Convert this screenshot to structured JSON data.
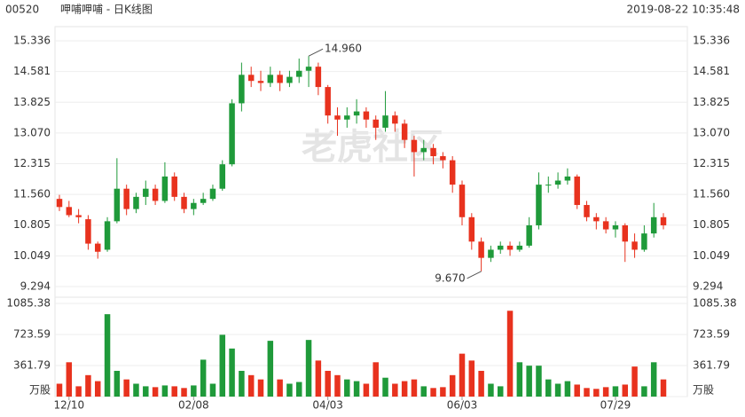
{
  "chart_data": {
    "type": "candlestick",
    "title": "00520",
    "subtitle": "呷哺呷哺 - 日K线图",
    "timestamp": "2019-08-22 10:35:48",
    "watermark": "老虎社区",
    "up_color": "#1f9a3a",
    "down_color": "#e8321e",
    "grid": true,
    "categories": [
      null,
      "12/10",
      null,
      null,
      null,
      null,
      null,
      null,
      null,
      null,
      null,
      null,
      null,
      null,
      "02/08",
      null,
      null,
      null,
      null,
      null,
      null,
      null,
      null,
      null,
      null,
      null,
      null,
      null,
      "04/03",
      null,
      null,
      null,
      null,
      null,
      null,
      null,
      null,
      null,
      null,
      null,
      null,
      null,
      "06/03",
      null,
      null,
      null,
      null,
      null,
      null,
      null,
      null,
      null,
      null,
      null,
      null,
      null,
      null,
      null,
      "07/29",
      null,
      null,
      null,
      null,
      null
    ],
    "open": [
      11.45,
      11.25,
      11.05,
      10.95,
      10.35,
      10.2,
      10.9,
      11.7,
      11.2,
      11.5,
      11.7,
      11.4,
      12.0,
      11.5,
      11.2,
      11.35,
      11.45,
      11.7,
      12.3,
      13.8,
      14.5,
      14.35,
      14.3,
      14.5,
      14.3,
      14.45,
      14.6,
      14.7,
      14.2,
      13.5,
      13.4,
      13.5,
      13.6,
      13.4,
      13.2,
      13.5,
      13.3,
      12.9,
      12.6,
      12.7,
      12.5,
      12.4,
      11.8,
      11.0,
      10.4,
      10.0,
      10.2,
      10.3,
      10.2,
      10.3,
      10.8,
      11.8,
      11.8,
      11.9,
      12.0,
      11.3,
      11.0,
      10.9,
      10.7,
      10.8,
      10.4,
      10.2,
      10.6,
      11.0
    ],
    "high": [
      11.55,
      11.4,
      11.2,
      11.05,
      10.4,
      11.0,
      12.45,
      11.8,
      11.6,
      11.9,
      11.8,
      12.35,
      12.1,
      11.6,
      11.45,
      11.6,
      11.8,
      12.4,
      13.9,
      14.8,
      14.7,
      14.6,
      14.7,
      14.6,
      14.6,
      14.9,
      14.96,
      14.8,
      14.25,
      13.7,
      13.7,
      13.9,
      13.7,
      13.5,
      14.1,
      13.6,
      13.4,
      13.0,
      12.9,
      12.8,
      12.6,
      12.5,
      11.9,
      11.1,
      10.5,
      10.3,
      10.4,
      10.4,
      10.4,
      11.0,
      12.1,
      12.0,
      12.1,
      12.2,
      12.05,
      11.4,
      11.1,
      11.0,
      10.9,
      10.85,
      10.6,
      10.8,
      11.35,
      11.1
    ],
    "low": [
      11.15,
      11.0,
      10.85,
      10.2,
      9.98,
      10.15,
      10.85,
      11.05,
      11.1,
      11.3,
      11.3,
      11.35,
      11.4,
      11.1,
      11.05,
      11.3,
      11.4,
      11.65,
      12.25,
      13.6,
      14.2,
      14.1,
      14.2,
      14.1,
      14.2,
      14.3,
      14.2,
      14.0,
      13.3,
      13.0,
      13.2,
      13.3,
      13.2,
      12.9,
      13.1,
      13.1,
      12.7,
      12.0,
      12.4,
      12.3,
      12.2,
      11.6,
      10.8,
      10.2,
      9.67,
      9.9,
      10.1,
      10.05,
      10.15,
      10.25,
      10.7,
      11.6,
      11.7,
      11.8,
      11.2,
      10.9,
      10.7,
      10.6,
      10.5,
      9.9,
      10.0,
      10.15,
      10.5,
      10.7
    ],
    "close": [
      11.25,
      11.05,
      11.0,
      10.35,
      10.15,
      10.9,
      11.7,
      11.2,
      11.5,
      11.7,
      11.4,
      12.0,
      11.5,
      11.2,
      11.35,
      11.45,
      11.7,
      12.3,
      13.8,
      14.5,
      14.35,
      14.3,
      14.5,
      14.3,
      14.45,
      14.6,
      14.7,
      14.2,
      13.5,
      13.4,
      13.5,
      13.6,
      13.4,
      13.2,
      13.5,
      13.3,
      12.9,
      12.6,
      12.7,
      12.5,
      12.4,
      11.8,
      11.0,
      10.4,
      10.0,
      10.2,
      10.3,
      10.2,
      10.3,
      10.8,
      11.8,
      11.8,
      11.9,
      12.0,
      11.3,
      11.0,
      10.9,
      10.7,
      10.8,
      10.4,
      10.2,
      10.6,
      11.0,
      10.8
    ],
    "volume": [
      150,
      400,
      120,
      250,
      180,
      960,
      300,
      200,
      150,
      120,
      110,
      130,
      120,
      100,
      130,
      430,
      150,
      720,
      560,
      300,
      250,
      200,
      650,
      200,
      150,
      170,
      660,
      420,
      300,
      250,
      200,
      180,
      150,
      400,
      220,
      150,
      180,
      200,
      120,
      100,
      110,
      250,
      500,
      420,
      300,
      150,
      120,
      1000,
      400,
      360,
      360,
      200,
      150,
      180,
      140,
      100,
      90,
      110,
      120,
      140,
      350,
      120,
      400,
      200
    ],
    "ylim": [
      9.294,
      15.336
    ],
    "yticks": [
      9.294,
      10.049,
      10.805,
      {
        "value": 11.56,
        "label": "11.560"
      },
      12.315,
      {
        "value": 13.07,
        "label": "13.070"
      },
      13.825,
      14.581,
      15.336
    ],
    "y2lim": [
      0,
      1085.38
    ],
    "y2ticks": [
      {
        "value": 0,
        "label": "万股"
      },
      361.79,
      723.59,
      1085.38
    ],
    "annotations": [
      {
        "value": 14.96,
        "label": "14.960"
      },
      {
        "value": 9.67,
        "label": "9.670"
      }
    ]
  }
}
